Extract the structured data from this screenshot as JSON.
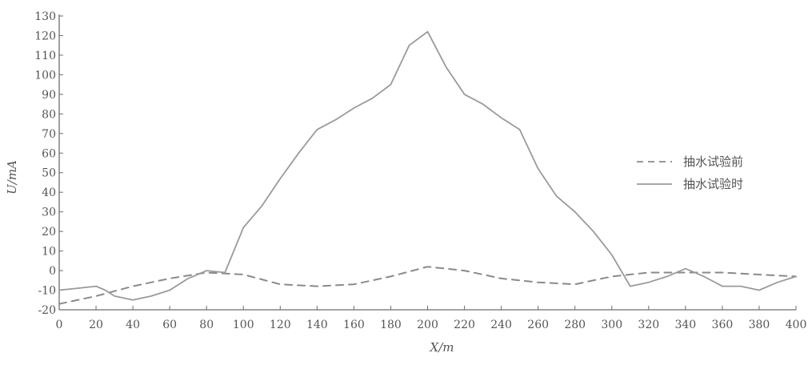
{
  "chart_data": {
    "type": "line",
    "title": "",
    "xlabel": "X/m",
    "ylabel": "U/mA",
    "xlim": [
      0,
      400
    ],
    "ylim": [
      -20,
      130
    ],
    "xticks": [
      0,
      20,
      40,
      60,
      80,
      100,
      120,
      140,
      160,
      180,
      200,
      220,
      240,
      260,
      280,
      300,
      320,
      340,
      360,
      380,
      400
    ],
    "yticks": [
      -20,
      -10,
      0,
      10,
      20,
      30,
      40,
      50,
      60,
      70,
      80,
      90,
      100,
      110,
      120,
      130
    ],
    "grid": false,
    "legend_position": "right",
    "series": [
      {
        "name": "抽水试验前",
        "line_style": "dashed",
        "color": "#8a8a8a",
        "x": [
          0,
          20,
          40,
          60,
          80,
          100,
          120,
          140,
          160,
          180,
          200,
          220,
          240,
          260,
          280,
          300,
          320,
          340,
          360,
          380,
          400
        ],
        "y": [
          -17,
          -13,
          -8,
          -4,
          -1,
          -2,
          -7,
          -8,
          -7,
          -3,
          2,
          0,
          -4,
          -6,
          -7,
          -3,
          -1,
          -1,
          -1,
          -2,
          -3
        ]
      },
      {
        "name": "抽水试验时",
        "line_style": "solid",
        "color": "#9a9a9a",
        "x": [
          0,
          10,
          20,
          25,
          30,
          40,
          50,
          60,
          70,
          80,
          90,
          100,
          110,
          120,
          130,
          140,
          150,
          160,
          170,
          180,
          190,
          200,
          210,
          220,
          230,
          240,
          250,
          260,
          270,
          280,
          290,
          300,
          310,
          320,
          330,
          340,
          350,
          360,
          370,
          380,
          390,
          400
        ],
        "y": [
          -10,
          -9,
          -8,
          -10,
          -13,
          -15,
          -13,
          -10,
          -4,
          0,
          -1,
          22,
          33,
          47,
          60,
          72,
          77,
          83,
          88,
          95,
          115,
          122,
          104,
          90,
          85,
          78,
          72,
          52,
          38,
          30,
          20,
          8,
          -8,
          -6,
          -3,
          1,
          -3,
          -8,
          -8,
          -10,
          -6,
          -3
        ]
      }
    ]
  }
}
